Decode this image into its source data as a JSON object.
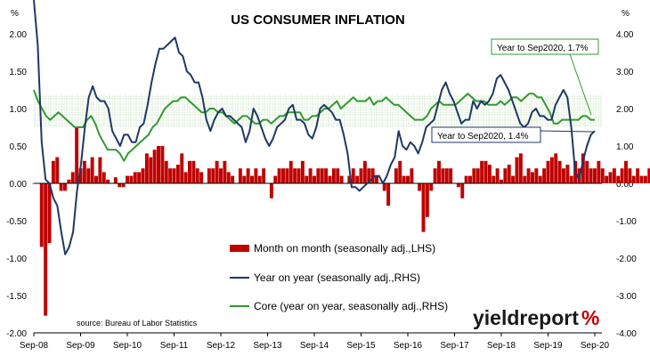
{
  "chart_data": {
    "type": "bar",
    "title": "US CONSUMER INFLATION",
    "left_axis_unit": "%",
    "right_axis_unit": "%",
    "left_ylim": [
      -2.0,
      2.0
    ],
    "right_ylim": [
      -4.0,
      4.0
    ],
    "left_ticks": [
      "2.00",
      "1.50",
      "1.00",
      "0.50",
      "0.00",
      "-0.50",
      "-1.00",
      "-1.50",
      "-2.00"
    ],
    "right_ticks": [
      "4.00",
      "3.00",
      "2.00",
      "1.00",
      "0.00",
      "-1.00",
      "-2.00",
      "-3.00",
      "-4.00"
    ],
    "x_range": [
      "Sep-08",
      "Sep-20"
    ],
    "x_ticks": [
      "Sep-08",
      "Sep-09",
      "Sep-10",
      "Sep-11",
      "Sep-12",
      "Sep-13",
      "Sep-14",
      "Sep-15",
      "Sep-16",
      "Sep-17",
      "Sep-18",
      "Sep-19",
      "Sep-20"
    ],
    "grid": false,
    "legend_position": "bottom-center",
    "series": [
      {
        "name": "Month on month (seasonally adj.,LHS)",
        "kind": "bar",
        "axis": "left",
        "color": "#c00000",
        "start": "Sep-08",
        "values": [
          0.0,
          0.0,
          -0.85,
          -1.77,
          -0.8,
          0.3,
          0.35,
          -0.1,
          -0.1,
          0.05,
          0.15,
          0.75,
          0.2,
          0.3,
          0.2,
          0.35,
          0.1,
          0.35,
          0.15,
          0.05,
          0.0,
          0.08,
          -0.05,
          -0.05,
          0.1,
          0.1,
          0.15,
          0.15,
          0.2,
          0.4,
          0.35,
          0.45,
          0.5,
          0.5,
          0.3,
          0.2,
          0.2,
          0.25,
          0.4,
          0.15,
          0.3,
          0.3,
          0.2,
          0.15,
          0.0,
          0.2,
          0.2,
          0.3,
          0.2,
          0.3,
          0.15,
          0.1,
          0.0,
          0.2,
          0.1,
          0.2,
          0.1,
          0.2,
          0.1,
          0.2,
          0.0,
          -0.2,
          0.1,
          0.2,
          0.2,
          0.2,
          0.3,
          0.2,
          0.2,
          0.3,
          0.1,
          0.2,
          0.1,
          0.2,
          0.2,
          0.2,
          0.1,
          0.2,
          0.2,
          0.1,
          0.0,
          0.1,
          0.2,
          0.1,
          0.2,
          0.3,
          0.2,
          0.2,
          0.1,
          0.0,
          -0.1,
          -0.3,
          0.0,
          0.2,
          0.3,
          0.1,
          0.1,
          0.2,
          0.0,
          -0.1,
          -0.65,
          -0.45,
          -0.1,
          0.2,
          0.3,
          0.2,
          0.2,
          0.2,
          0.0,
          -0.05,
          -0.2,
          0.1,
          0.1,
          0.2,
          0.2,
          0.3,
          0.3,
          0.25,
          0.1,
          0.2,
          0.05,
          0.2,
          0.25,
          0.1,
          0.35,
          0.4,
          0.1,
          0.2,
          0.15,
          0.2,
          0.1,
          0.2,
          0.3,
          0.35,
          0.4,
          0.3,
          0.2,
          0.25,
          0.1,
          0.3,
          0.2,
          0.4,
          0.3,
          0.2,
          0.2,
          0.3,
          0.2,
          0.1,
          0.15,
          0.2,
          0.1,
          0.2,
          0.3,
          0.2,
          0.1,
          0.2,
          0.1,
          0.1,
          0.2,
          0.2,
          0.1,
          0.3,
          0.2,
          0.1,
          0.0,
          0.1,
          0.2,
          0.2,
          0.3,
          0.2,
          0.1,
          0.2,
          0.3,
          0.2,
          0.25,
          0.1,
          -0.4,
          -0.8,
          -0.1,
          0.55,
          0.6,
          0.4,
          0.2
        ],
        "last": "Sep-20"
      },
      {
        "name": "Year on year (seasonally adj.,RHS)",
        "kind": "line",
        "axis": "right",
        "color": "#1f3864",
        "start": "Sep-08",
        "values": [
          5.0,
          3.7,
          1.1,
          0.1,
          0.0,
          -0.4,
          -0.6,
          -1.3,
          -1.9,
          -1.7,
          -1.3,
          -0.2,
          0.5,
          1.5,
          2.3,
          2.6,
          2.3,
          2.2,
          2.2,
          2.0,
          1.4,
          1.2,
          1.0,
          1.3,
          1.3,
          1.1,
          1.1,
          1.5,
          1.6,
          2.1,
          2.7,
          3.2,
          3.6,
          3.6,
          3.7,
          3.8,
          3.9,
          3.5,
          3.4,
          3.0,
          2.9,
          2.7,
          2.7,
          2.3,
          1.7,
          1.4,
          1.7,
          1.9,
          2.0,
          1.8,
          1.8,
          1.7,
          1.6,
          1.5,
          1.1,
          1.4,
          2.0,
          1.8,
          1.5,
          1.2,
          1.0,
          1.2,
          1.5,
          1.6,
          1.7,
          2.0,
          2.1,
          1.7,
          1.7,
          1.6,
          1.3,
          1.2,
          1.5,
          2.0,
          2.1,
          2.0,
          1.9,
          1.7,
          1.7,
          1.3,
          0.8,
          -0.1,
          -0.1,
          -0.2,
          -0.1,
          0.0,
          0.1,
          0.2,
          0.2,
          0.0,
          0.2,
          0.5,
          0.7,
          1.4,
          1.0,
          0.9,
          1.1,
          1.0,
          0.8,
          1.1,
          1.5,
          1.6,
          1.7,
          2.1,
          2.5,
          2.7,
          2.4,
          2.2,
          1.9,
          1.6,
          1.7,
          1.7,
          2.2,
          2.0,
          2.2,
          2.1,
          2.2,
          2.4,
          2.8,
          2.9,
          2.7,
          2.5,
          2.2,
          1.9,
          1.6,
          1.5,
          1.6,
          1.9,
          2.0,
          1.8,
          1.8,
          1.7,
          1.7,
          2.1,
          2.3,
          2.5,
          2.3,
          1.5,
          0.3,
          0.1,
          0.6,
          1.0,
          1.3,
          1.4
        ],
        "last": "Sep-20"
      },
      {
        "name": "Core (year on year, seasonally adj.,RHS)",
        "kind": "line",
        "axis": "right",
        "color": "#339933",
        "start": "Sep-08",
        "values": [
          2.5,
          2.2,
          2.0,
          1.8,
          1.7,
          1.8,
          1.9,
          1.8,
          1.7,
          1.6,
          1.5,
          1.5,
          1.5,
          1.7,
          1.8,
          1.6,
          1.3,
          1.1,
          0.9,
          0.9,
          0.9,
          0.8,
          0.6,
          0.8,
          0.9,
          1.0,
          1.1,
          1.2,
          1.3,
          1.5,
          1.6,
          1.8,
          2.0,
          2.1,
          2.2,
          2.2,
          2.3,
          2.3,
          2.2,
          2.1,
          2.0,
          1.9,
          1.9,
          2.0,
          2.0,
          1.9,
          1.9,
          1.8,
          1.7,
          1.6,
          1.7,
          1.8,
          1.8,
          1.7,
          1.6,
          1.6,
          1.7,
          1.7,
          1.6,
          1.7,
          1.8,
          1.8,
          1.9,
          1.9,
          1.9,
          1.9,
          1.7,
          1.7,
          1.8,
          1.8,
          1.9,
          2.0,
          2.0,
          2.1,
          2.2,
          2.0,
          2.1,
          2.2,
          2.3,
          2.2,
          2.2,
          2.2,
          2.3,
          2.1,
          2.2,
          2.2,
          2.3,
          2.2,
          2.1,
          2.1,
          2.0,
          1.9,
          1.8,
          1.7,
          1.7,
          1.7,
          1.8,
          2.0,
          2.1,
          2.2,
          2.1,
          2.1,
          2.1,
          2.1,
          2.2,
          2.3,
          2.4,
          2.3,
          2.2,
          2.2,
          2.2,
          2.1,
          2.1,
          2.1,
          2.2,
          2.1,
          2.2,
          2.3,
          2.3,
          2.2,
          2.3,
          2.4,
          2.4,
          2.3,
          2.3,
          2.1,
          1.9,
          1.6,
          1.6,
          1.7,
          1.7,
          1.7,
          1.7,
          1.7,
          1.8,
          1.8,
          1.7,
          1.7
        ],
        "last": "Sep-20"
      }
    ],
    "annotations": [
      {
        "text": "Year to Sep2020, 1.7%",
        "series": "Core (year on year, seasonally adj.,RHS)",
        "color": "#339933"
      },
      {
        "text": "Year to Sep2020, 1.4%",
        "series": "Year on year (seasonally adj.,RHS)",
        "color": "#1f3864"
      }
    ],
    "source": "source: Bureau of Labor Statistics"
  },
  "brand": {
    "logo_word": "yieldreport",
    "logo_mark": "%",
    "logo_color": "#1a1a1a",
    "mark_color": "#c00000"
  }
}
